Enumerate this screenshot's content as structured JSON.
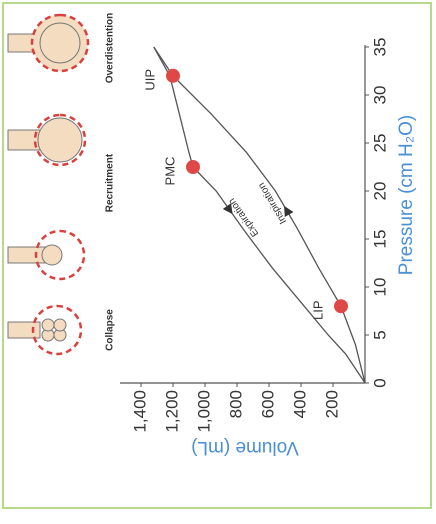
{
  "chart_data": {
    "type": "line",
    "xlabel": "Pressure (cm H₂O)",
    "ylabel": "Volume (mL)",
    "xlim": [
      0,
      35
    ],
    "xticks": [
      0,
      5,
      10,
      15,
      20,
      25,
      30,
      35
    ],
    "ylim": [
      0,
      1500
    ],
    "yticks": [
      {
        "value": 200,
        "label": "200"
      },
      {
        "value": 400,
        "label": "400"
      },
      {
        "value": 600,
        "label": "600"
      },
      {
        "value": 800,
        "label": "800"
      },
      {
        "value": 1000,
        "label": "1,000"
      },
      {
        "value": 1200,
        "label": "1,200"
      },
      {
        "value": 1400,
        "label": "1,400"
      }
    ],
    "series": [
      {
        "name": "Inspiration",
        "color": "#555555",
        "x": [
          0,
          4,
          8,
          12,
          16,
          20,
          24,
          28,
          32,
          35
        ],
        "y": [
          0,
          60,
          150,
          290,
          420,
          560,
          740,
          960,
          1200,
          1320
        ]
      },
      {
        "name": "Expiration",
        "color": "#555555",
        "x": [
          35,
          32,
          28,
          24,
          22.5,
          20,
          16,
          12,
          8,
          5,
          3,
          0
        ],
        "y": [
          1320,
          1220,
          1160,
          1100,
          1075,
          930,
          760,
          580,
          380,
          230,
          120,
          0
        ]
      }
    ],
    "points": [
      {
        "label": "LIP",
        "x": 8,
        "y": 150
      },
      {
        "label": "PMC",
        "x": 22.5,
        "y": 1075
      },
      {
        "label": "UIP",
        "x": 32,
        "y": 1200
      }
    ],
    "point_color": "#e04848",
    "diagrams": [
      "Collapse",
      "Recruitment",
      "Overdistention"
    ]
  }
}
